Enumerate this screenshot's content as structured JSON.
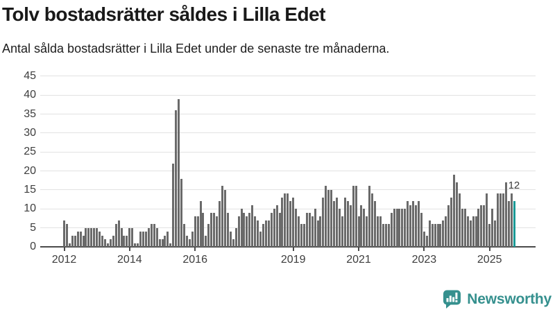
{
  "header": {
    "title": "Tolv bostadsrätter såldes i Lilla Edet",
    "subtitle": "Antal sålda bostadsrätter i Lilla Edet under de senaste tre månaderna."
  },
  "chart_data": {
    "type": "bar",
    "title": "Tolv bostadsrätter såldes i Lilla Edet",
    "subtitle": "Antal sålda bostadsrätter i Lilla Edet under de senaste tre månaderna.",
    "frequency": "monthly",
    "x_start_year": 2012,
    "ylim": [
      0,
      45
    ],
    "grid": "horizontal",
    "y_ticks": [
      0,
      5,
      10,
      15,
      20,
      25,
      30,
      35,
      40,
      45
    ],
    "x_ticks": [
      {
        "label": "2012",
        "year": 2012
      },
      {
        "label": "2014",
        "year": 2014
      },
      {
        "label": "2016",
        "year": 2016
      },
      {
        "label": "2019",
        "year": 2019
      },
      {
        "label": "2021",
        "year": 2021
      },
      {
        "label": "2023",
        "year": 2023
      },
      {
        "label": "2025",
        "year": 2025
      }
    ],
    "values": [
      7,
      6,
      1,
      3,
      3,
      4,
      4,
      3,
      5,
      5,
      5,
      5,
      5,
      4,
      3,
      2,
      1,
      2,
      3,
      6,
      7,
      5,
      3,
      3,
      5,
      5,
      1,
      1,
      4,
      4,
      4,
      5,
      6,
      6,
      5,
      2,
      2,
      3,
      4,
      1,
      22,
      36,
      39,
      18,
      6,
      3,
      2,
      4,
      8,
      8,
      12,
      9,
      3,
      6,
      9,
      9,
      8,
      12,
      16,
      15,
      9,
      4,
      2,
      5,
      8,
      10,
      9,
      8,
      9,
      11,
      8,
      7,
      4,
      6,
      7,
      7,
      9,
      10,
      11,
      9,
      13,
      14,
      14,
      12,
      13,
      10,
      8,
      6,
      6,
      9,
      9,
      8,
      10,
      7,
      8,
      13,
      16,
      15,
      15,
      12,
      13,
      10,
      8,
      13,
      12,
      11,
      16,
      16,
      8,
      11,
      10,
      8,
      16,
      14,
      12,
      8,
      8,
      6,
      6,
      6,
      9,
      10,
      10,
      10,
      10,
      10,
      12,
      11,
      12,
      11,
      12,
      9,
      4,
      3,
      7,
      6,
      6,
      6,
      6,
      7,
      8,
      11,
      13,
      19,
      17,
      14,
      10,
      10,
      8,
      7,
      8,
      8,
      10,
      11,
      11,
      14,
      6,
      10,
      7,
      14,
      14,
      14,
      17,
      12,
      14,
      12
    ],
    "highlight_last_value": 12,
    "annotation_label": "12",
    "bar_color": "#6a6a6a",
    "highlight_color": "#1a9a96"
  },
  "footer": {
    "brand": "Newsworthy",
    "logo_color": "#35908e"
  }
}
